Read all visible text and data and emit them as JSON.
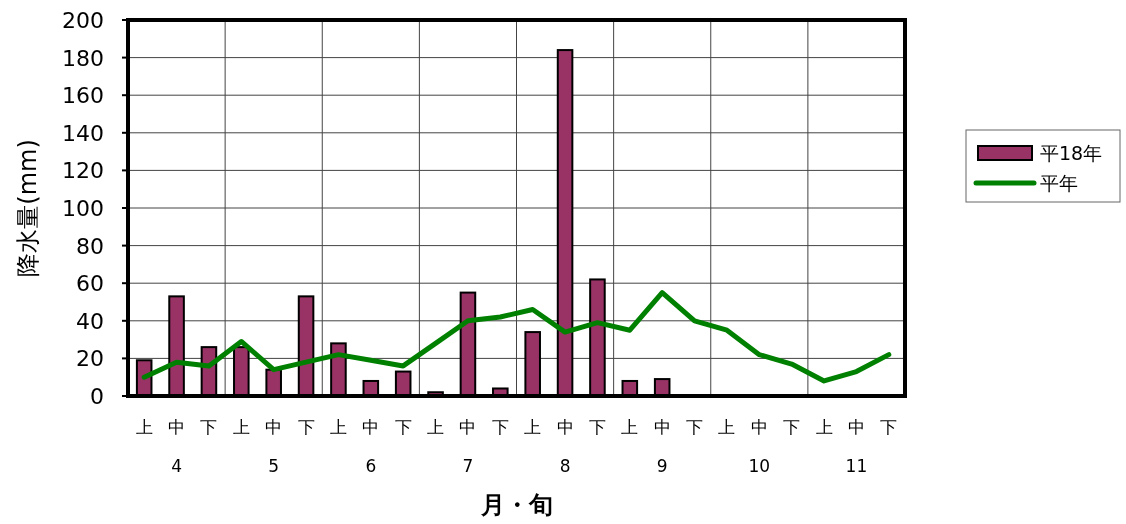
{
  "chart_data": {
    "type": "bar",
    "xlabel": "月・旬",
    "ylabel": "降水量(mm)",
    "categories": [
      "上",
      "中",
      "下",
      "上",
      "中",
      "下",
      "上",
      "中",
      "下",
      "上",
      "中",
      "下",
      "上",
      "中",
      "下",
      "上",
      "中",
      "下",
      "上",
      "中",
      "下",
      "上",
      "中",
      "下"
    ],
    "series": [
      {
        "name": "平18年",
        "color": "#993366",
        "values": [
          19,
          53,
          26,
          26,
          14,
          53,
          28,
          8,
          13,
          2,
          55,
          4,
          34,
          184,
          62,
          8,
          9,
          null,
          null,
          null,
          null,
          null,
          null,
          null
        ]
      },
      {
        "name": "平年",
        "type": "line",
        "color": "#008000",
        "values": [
          10,
          18,
          16,
          29,
          14,
          18,
          22,
          19,
          16,
          28,
          40,
          42,
          46,
          34,
          39,
          35,
          55,
          40,
          35,
          22,
          17,
          8,
          13,
          22
        ]
      }
    ],
    "annotations": [
      "4",
      "5",
      "6",
      "7",
      "8",
      "9",
      "10",
      "11"
    ],
    "ylim": [
      0,
      200
    ],
    "yticks": [
      0,
      20,
      40,
      60,
      80,
      100,
      120,
      140,
      160,
      180,
      200
    ],
    "grid": true,
    "legend": "right",
    "marker": "none",
    "line_style": "solid"
  }
}
